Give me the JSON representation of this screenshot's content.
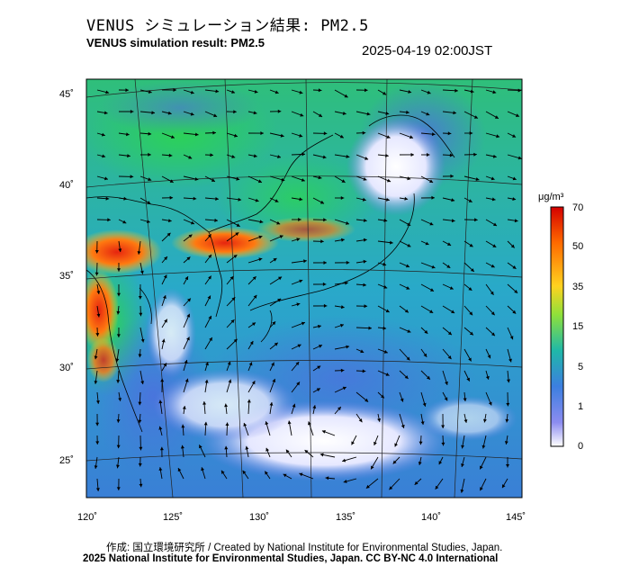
{
  "header": {
    "title_jp": "VENUS シミュレーション結果: PM2.5",
    "title_en": "VENUS simulation result: PM2.5",
    "timestamp": "2025-04-19 02:00JST"
  },
  "map": {
    "lon_ticks": [
      "120˚",
      "125˚",
      "130˚",
      "135˚",
      "140˚",
      "145˚"
    ],
    "lat_ticks": [
      "45˚",
      "40˚",
      "35˚",
      "30˚",
      "25˚"
    ],
    "field": "PM2.5 concentration with wind vectors"
  },
  "colorbar": {
    "unit": "μg/m³",
    "ticks": [
      "70",
      "50",
      "35",
      "15",
      "5",
      "1",
      "0"
    ],
    "colors": [
      "#d7191c",
      "#fd8d3c",
      "#fee08b",
      "#1a9850",
      "#2ca25f",
      "#41b6c4",
      "#2c7fb8",
      "#9e9ac8",
      "#ffffff"
    ]
  },
  "footer": {
    "credit": "作成: 国立環境研究所 / Created by National Institute for Environmental Studies, Japan.",
    "copyright": "2025 National Institute for Environmental Studies, Japan. CC BY-NC 4.0 International"
  }
}
